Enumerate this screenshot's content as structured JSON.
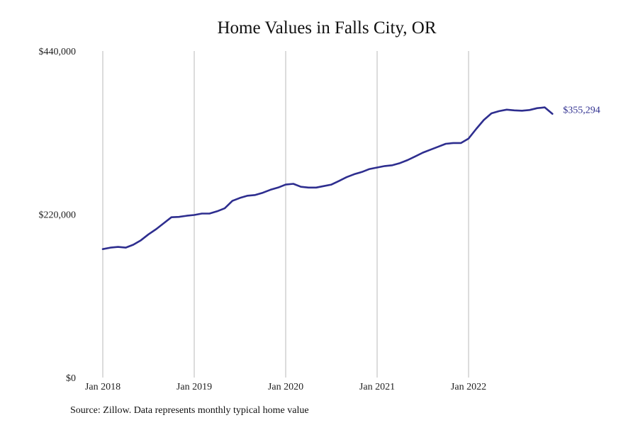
{
  "chart_data": {
    "type": "line",
    "title": "Home Values in Falls City, OR",
    "xlabel": "",
    "ylabel": "",
    "x_tick_labels": [
      "Jan 2018",
      "Jan 2019",
      "Jan 2020",
      "Jan 2021",
      "Jan 2022"
    ],
    "y_tick_labels": [
      "$0",
      "$220,000",
      "$440,000"
    ],
    "y_ticks": [
      0,
      220000,
      440000
    ],
    "ylim": [
      0,
      440000
    ],
    "x_start": "2018-01",
    "x_end": "2022-12",
    "grid": "vertical lines at January",
    "line_color": "#2e2e8f",
    "end_label": "$355,294",
    "series": [
      {
        "values": [
          173000,
          175000,
          176000,
          175000,
          179000,
          185000,
          193000,
          200000,
          208000,
          216000,
          216500,
          218000,
          219000,
          221000,
          221000,
          224000,
          228000,
          238000,
          242000,
          245000,
          246000,
          249000,
          253000,
          256000,
          260000,
          261000,
          257000,
          256000,
          256000,
          258000,
          260000,
          265000,
          270000,
          274000,
          277000,
          281000,
          283000,
          285000,
          286000,
          289000,
          293000,
          298000,
          303000,
          307000,
          311000,
          315000,
          316000,
          316000,
          322000,
          335000,
          347000,
          356000,
          359000,
          361000,
          360000,
          359500,
          360500,
          363000,
          364000,
          355294
        ]
      }
    ]
  },
  "footer": {
    "source": "Source: Zillow. Data represents monthly typical home value"
  }
}
